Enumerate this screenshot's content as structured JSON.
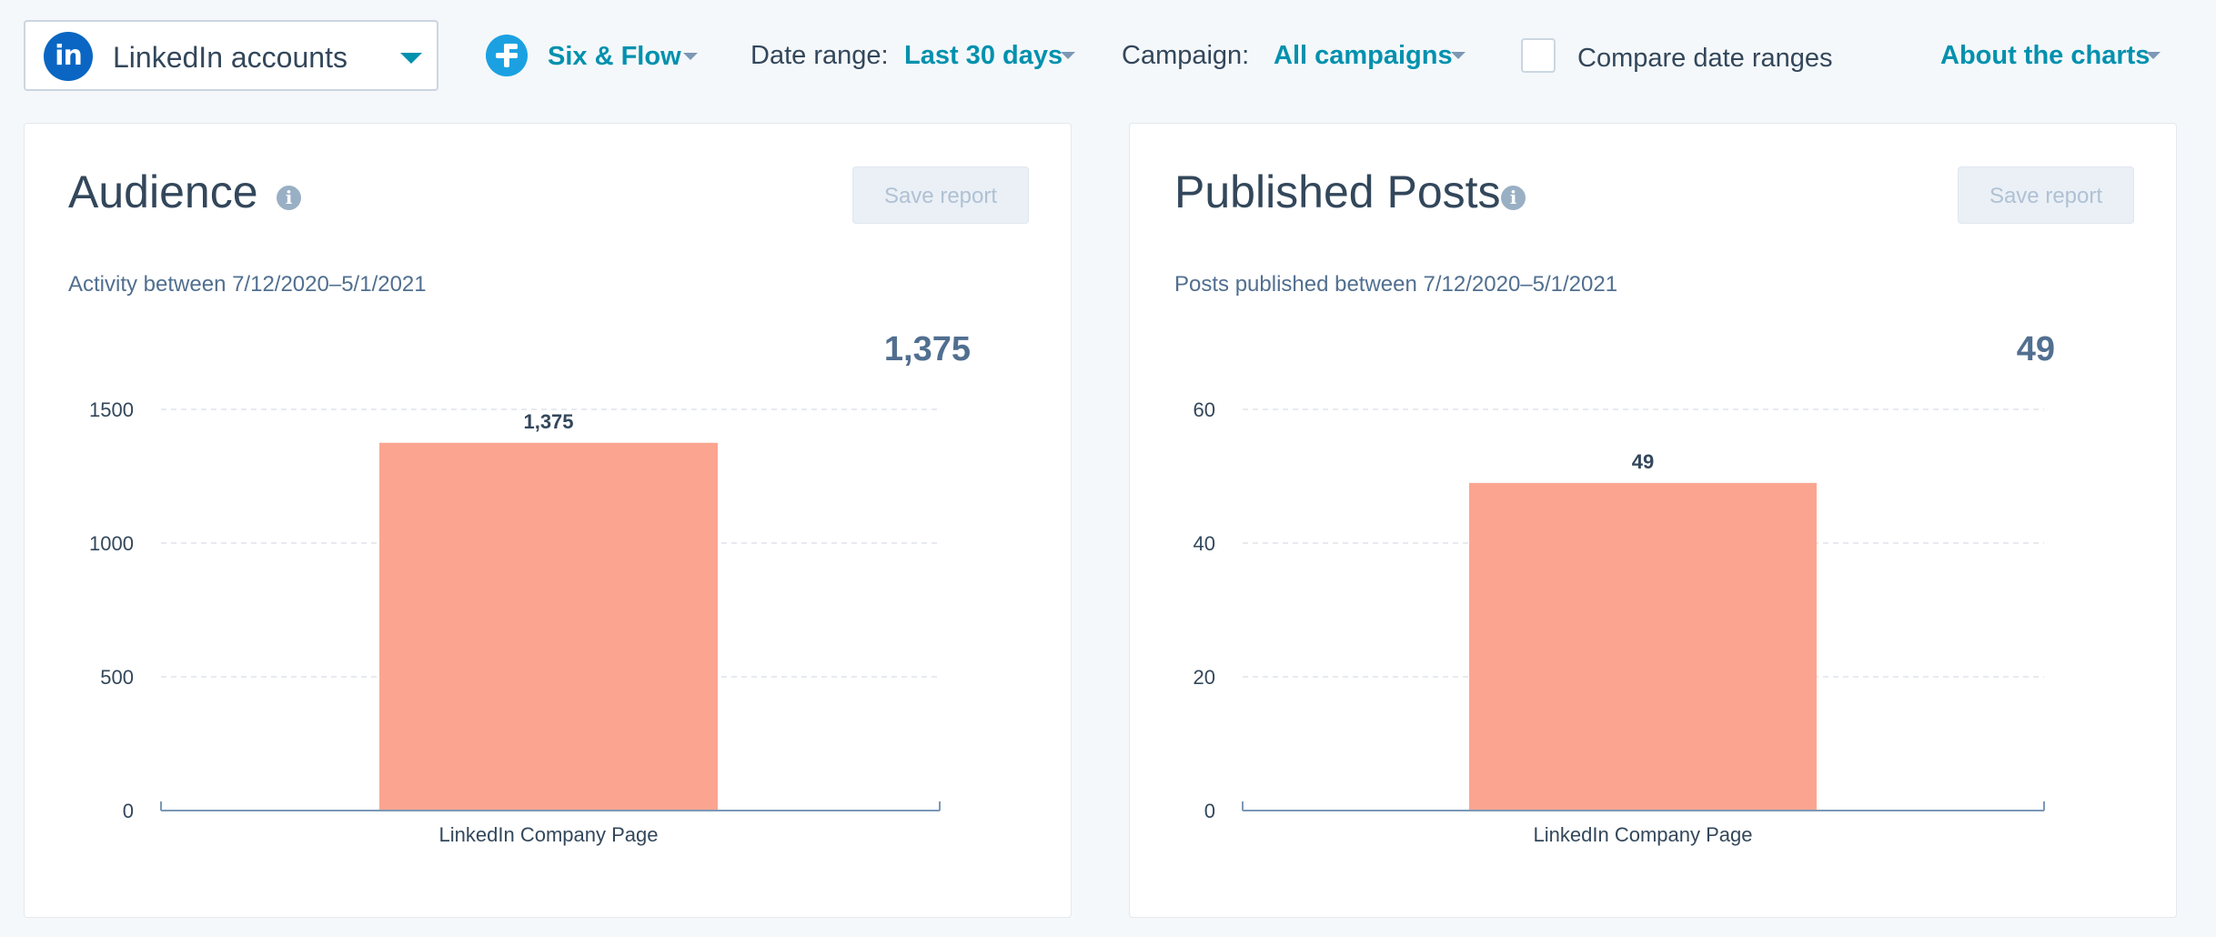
{
  "toolbar": {
    "account_select": {
      "label": "LinkedIn accounts",
      "badge_text": "in"
    },
    "brand": {
      "label": "Six & Flow"
    },
    "date_range": {
      "label": "Date range:",
      "value": "Last 30 days"
    },
    "campaign": {
      "label": "Campaign:",
      "value": "All campaigns"
    },
    "compare": {
      "label": "Compare date ranges",
      "checked": false
    },
    "about": {
      "label": "About the charts"
    }
  },
  "colors": {
    "accent": "#0091ae",
    "bar": "#fba591",
    "linkedin": "#0a66c2",
    "brand": "#1ba1e2"
  },
  "cards": [
    {
      "title": "Audience",
      "info_icon": "info-icon",
      "info_glyph": "i",
      "save_label": "Save report",
      "subtitle": "Activity between 7/12/2020–5/1/2021",
      "total": "1,375",
      "chart_data": {
        "type": "bar",
        "categories": [
          "LinkedIn Company Page"
        ],
        "values": [
          1375
        ],
        "data_labels": [
          "1,375"
        ],
        "yticks": [
          0,
          500,
          1000,
          1500
        ],
        "ylim": [
          0,
          1500
        ],
        "grid": true
      }
    },
    {
      "title": "Published Posts",
      "info_icon": "info-icon",
      "info_glyph": "i",
      "save_label": "Save report",
      "subtitle": "Posts published between 7/12/2020–5/1/2021",
      "total": "49",
      "chart_data": {
        "type": "bar",
        "categories": [
          "LinkedIn Company Page"
        ],
        "values": [
          49
        ],
        "data_labels": [
          "49"
        ],
        "yticks": [
          0,
          20,
          40,
          60
        ],
        "ylim": [
          0,
          60
        ],
        "grid": true
      }
    }
  ]
}
